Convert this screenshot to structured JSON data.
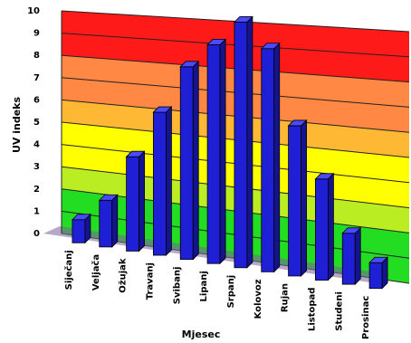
{
  "chart_data": {
    "type": "bar",
    "three_d": true,
    "xlabel": "Mjesec",
    "ylabel": "UV indeks",
    "ylim": [
      0,
      10
    ],
    "y_ticks": [
      "0",
      "1",
      "2",
      "3",
      "4",
      "5",
      "6",
      "7",
      "8",
      "9",
      "10"
    ],
    "categories": [
      "Siječanj",
      "Veljača",
      "Ožujak",
      "Travanj",
      "Svibanj",
      "Lipanj",
      "Srpanj",
      "Kolovoz",
      "Rujan",
      "Listopad",
      "Studeni",
      "Prosinac"
    ],
    "values": [
      1,
      2,
      4,
      6,
      8,
      9,
      10,
      9,
      6,
      4,
      2,
      1
    ],
    "bar_color": "#1f1fd6",
    "bands": [
      {
        "from": 0,
        "to": 2,
        "color": "#22dd22"
      },
      {
        "from": 2,
        "to": 3,
        "color": "#bbee22"
      },
      {
        "from": 3,
        "to": 5,
        "color": "#ffff00"
      },
      {
        "from": 5,
        "to": 6,
        "color": "#ffb833"
      },
      {
        "from": 6,
        "to": 8,
        "color": "#ff8844"
      },
      {
        "from": 8,
        "to": 10,
        "color": "#ff1a1a"
      }
    ]
  }
}
